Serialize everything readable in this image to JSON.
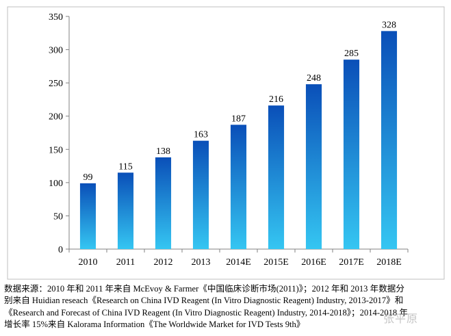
{
  "chart_data": {
    "type": "bar",
    "categories": [
      "2010",
      "2011",
      "2012",
      "2013",
      "2014E",
      "2015E",
      "2016E",
      "2017E",
      "2018E"
    ],
    "values": [
      99,
      115,
      138,
      163,
      187,
      216,
      248,
      285,
      328
    ],
    "ylim": [
      0,
      350
    ],
    "yticks": [
      0,
      50,
      100,
      150,
      200,
      250,
      300,
      350
    ],
    "data_labels": true,
    "grid": false,
    "bar_gradient": [
      "#0a4fb8",
      "#35c6f2"
    ]
  },
  "footnote": {
    "lines": [
      "数据来源：2010 年和 2011 年来自 McEvoy & Farmer《中国临床诊断市场(2011)》；2012 年和 2013 年数据分",
      "别来自 Huidian reseach《Research on China IVD Reagent (In Vitro Diagnostic Reagent) Industry, 2013-2017》和",
      "《Research and Forecast of China IVD Reagent (In Vitro Diagnostic Reagent) Industry, 2014-2018》；2014-2018 年",
      "增长率 15%来自 Kalorama Information《The Worldwide Market for IVD Tests 9th》"
    ]
  },
  "watermark": "张平原"
}
